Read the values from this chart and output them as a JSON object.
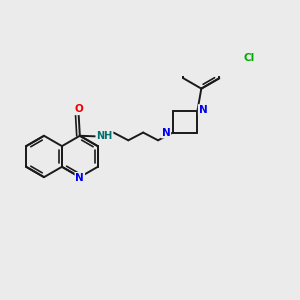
{
  "bg_color": "#ebebeb",
  "bond_color": "#1a1a1a",
  "N_color": "#0000ee",
  "O_color": "#ee0000",
  "Cl_color": "#00aa00",
  "NH_color": "#007070",
  "lw": 1.4,
  "dbo": 0.022,
  "ring_r": 0.16,
  "xlim": [
    -1.05,
    1.25
  ],
  "ylim": [
    -0.52,
    0.62
  ]
}
